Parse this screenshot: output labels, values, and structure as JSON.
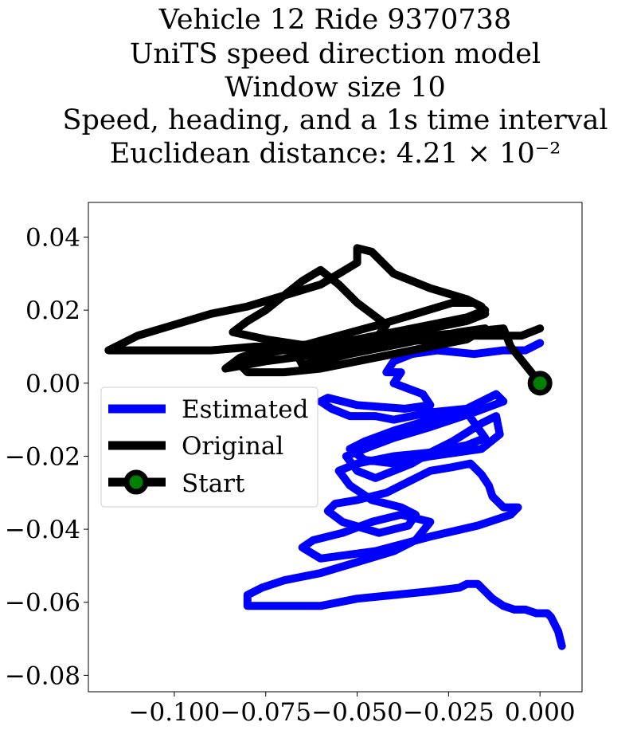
{
  "chart_data": {
    "type": "line",
    "title_lines": [
      "Vehicle 12 Ride 9370738",
      "UniTS speed direction model",
      "Window size 10",
      "Speed, heading, and a 1s time interval",
      "Euclidean distance: 4.21 × 10⁻²"
    ],
    "xlabel": "",
    "ylabel": "",
    "xlim": [
      -0.1235,
      0.0115
    ],
    "ylim": [
      -0.0845,
      0.0495
    ],
    "x_ticks": [
      -0.1,
      -0.075,
      -0.05,
      -0.025,
      0.0
    ],
    "x_tick_labels": [
      "−0.100",
      "−0.075",
      "−0.050",
      "−0.025",
      "0.000"
    ],
    "y_ticks": [
      0.04,
      0.02,
      0.0,
      -0.02,
      -0.04,
      -0.06,
      -0.08
    ],
    "y_tick_labels": [
      "0.04",
      "0.02",
      "0.00",
      "−0.02",
      "−0.04",
      "−0.06",
      "−0.08"
    ],
    "grid": false,
    "legend_position": "center-left",
    "legend": [
      "Estimated",
      "Original",
      "Start"
    ],
    "series": [
      {
        "name": "Estimated",
        "color": "#0000ff",
        "x": [
          0.0,
          -0.004,
          -0.01,
          -0.018,
          -0.028,
          -0.035,
          -0.04,
          -0.042,
          -0.038,
          -0.04,
          -0.032,
          -0.03,
          -0.037,
          -0.05,
          -0.058,
          -0.06,
          -0.057,
          -0.052,
          -0.045,
          -0.04,
          -0.03,
          -0.02,
          -0.016,
          -0.012,
          -0.01,
          -0.018,
          -0.03,
          -0.04,
          -0.048,
          -0.053,
          -0.05,
          -0.045,
          -0.035,
          -0.03,
          -0.024,
          -0.016,
          -0.012,
          -0.011,
          -0.016,
          -0.03,
          -0.04,
          -0.048,
          -0.052,
          -0.048,
          -0.04,
          -0.03,
          -0.02,
          -0.015,
          -0.02,
          -0.03,
          -0.04,
          -0.05,
          -0.055,
          -0.052,
          -0.046,
          -0.038,
          -0.034,
          -0.036,
          -0.044,
          -0.054,
          -0.058,
          -0.056,
          -0.05,
          -0.042,
          -0.036,
          -0.03,
          -0.024,
          -0.019,
          -0.016,
          -0.014,
          -0.013,
          -0.01,
          -0.006,
          -0.008,
          -0.017,
          -0.03,
          -0.045,
          -0.06,
          -0.065,
          -0.062,
          -0.054,
          -0.046,
          -0.038,
          -0.03,
          -0.034,
          -0.04,
          -0.05,
          -0.06,
          -0.07,
          -0.076,
          -0.08,
          -0.08,
          -0.075,
          -0.07,
          -0.06,
          -0.05,
          -0.04,
          -0.03,
          -0.022,
          -0.02,
          -0.017,
          -0.015,
          -0.013,
          -0.01,
          -0.007,
          -0.004,
          -0.001,
          0.002,
          0.003,
          0.005,
          0.006
        ],
        "y": [
          0.011,
          0.009,
          0.009,
          0.008,
          0.009,
          0.008,
          0.006,
          0.003,
          0.003,
          0.0,
          -0.003,
          -0.006,
          -0.007,
          -0.006,
          -0.004,
          -0.005,
          -0.007,
          -0.009,
          -0.009,
          -0.01,
          -0.008,
          -0.007,
          -0.005,
          -0.003,
          -0.005,
          -0.008,
          -0.012,
          -0.015,
          -0.018,
          -0.02,
          -0.024,
          -0.026,
          -0.022,
          -0.019,
          -0.016,
          -0.011,
          -0.009,
          -0.014,
          -0.018,
          -0.02,
          -0.022,
          -0.021,
          -0.018,
          -0.016,
          -0.013,
          -0.01,
          -0.008,
          -0.015,
          -0.017,
          -0.019,
          -0.02,
          -0.022,
          -0.024,
          -0.028,
          -0.032,
          -0.034,
          -0.036,
          -0.039,
          -0.041,
          -0.038,
          -0.035,
          -0.033,
          -0.032,
          -0.03,
          -0.027,
          -0.024,
          -0.023,
          -0.022,
          -0.025,
          -0.028,
          -0.031,
          -0.034,
          -0.034,
          -0.036,
          -0.039,
          -0.042,
          -0.046,
          -0.048,
          -0.045,
          -0.043,
          -0.041,
          -0.038,
          -0.036,
          -0.038,
          -0.043,
          -0.046,
          -0.049,
          -0.052,
          -0.054,
          -0.056,
          -0.058,
          -0.061,
          -0.061,
          -0.061,
          -0.061,
          -0.059,
          -0.058,
          -0.057,
          -0.056,
          -0.055,
          -0.055,
          -0.057,
          -0.059,
          -0.061,
          -0.062,
          -0.062,
          -0.063,
          -0.063,
          -0.064,
          -0.068,
          -0.072
        ]
      },
      {
        "name": "Original",
        "color": "#000000",
        "x": [
          0.0,
          -0.004,
          -0.008,
          -0.01,
          -0.02,
          -0.03,
          -0.04,
          -0.05,
          -0.06,
          -0.07,
          -0.078,
          -0.09,
          -0.1,
          -0.11,
          -0.118,
          -0.11,
          -0.1,
          -0.09,
          -0.08,
          -0.07,
          -0.06,
          -0.055,
          -0.05,
          -0.05,
          -0.046,
          -0.04,
          -0.03,
          -0.02,
          -0.016,
          -0.015,
          -0.02,
          -0.03,
          -0.04,
          -0.05,
          -0.06,
          -0.068,
          -0.076,
          -0.082,
          -0.086,
          -0.075,
          -0.06,
          -0.05,
          -0.045,
          -0.042,
          -0.05,
          -0.055,
          -0.06,
          -0.065,
          -0.07,
          -0.075,
          -0.08,
          -0.084,
          -0.075,
          -0.062,
          -0.05,
          -0.04,
          -0.03,
          -0.02,
          -0.015,
          -0.018,
          -0.024,
          -0.034,
          -0.044,
          -0.055,
          -0.066,
          -0.075,
          -0.082,
          -0.08,
          -0.07,
          -0.06,
          -0.05,
          -0.04,
          -0.03,
          -0.02,
          -0.015,
          -0.022,
          -0.032,
          -0.042,
          -0.052,
          -0.06,
          -0.065,
          -0.066,
          -0.06,
          -0.05,
          -0.04,
          -0.03,
          -0.02,
          -0.01,
          -0.005,
          0.0
        ],
        "y": [
          0.0,
          0.005,
          0.01,
          0.015,
          0.014,
          0.013,
          0.012,
          0.011,
          0.011,
          0.01,
          0.01,
          0.009,
          0.009,
          0.009,
          0.009,
          0.013,
          0.016,
          0.019,
          0.021,
          0.024,
          0.027,
          0.03,
          0.033,
          0.037,
          0.036,
          0.03,
          0.026,
          0.023,
          0.021,
          0.019,
          0.017,
          0.015,
          0.013,
          0.011,
          0.01,
          0.009,
          0.009,
          0.007,
          0.004,
          0.006,
          0.008,
          0.01,
          0.012,
          0.016,
          0.022,
          0.027,
          0.031,
          0.028,
          0.024,
          0.02,
          0.017,
          0.014,
          0.012,
          0.01,
          0.012,
          0.014,
          0.016,
          0.018,
          0.02,
          0.022,
          0.022,
          0.019,
          0.016,
          0.013,
          0.01,
          0.008,
          0.005,
          0.003,
          0.003,
          0.004,
          0.006,
          0.008,
          0.01,
          0.012,
          0.015,
          0.014,
          0.012,
          0.01,
          0.008,
          0.006,
          0.005,
          0.007,
          0.009,
          0.01,
          0.011,
          0.012,
          0.013,
          0.013,
          0.013,
          0.015
        ]
      }
    ],
    "start_point": {
      "name": "Start",
      "x": 0.0,
      "y": 0.0,
      "fill_color": "#008000",
      "edge_color": "#000000"
    }
  }
}
